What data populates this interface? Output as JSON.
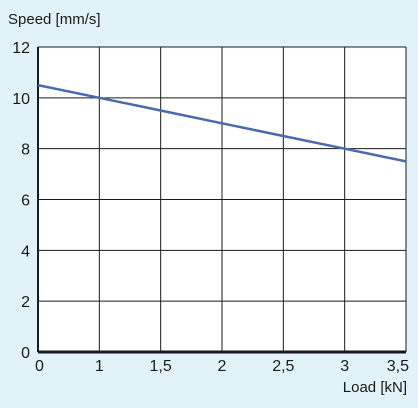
{
  "chart_data": {
    "type": "line",
    "title": "",
    "xlabel": "Load [kN]",
    "ylabel": "Speed [mm/s]",
    "x_ticks": [
      "0",
      "1",
      "1,5",
      "2",
      "2,5",
      "3",
      "3,5"
    ],
    "y_ticks": [
      "0",
      "2",
      "4",
      "6",
      "8",
      "10",
      "12"
    ],
    "xlim": [
      0,
      3.5
    ],
    "ylim": [
      0,
      12
    ],
    "grid": true,
    "legend": "none",
    "series": [
      {
        "x": [
          0,
          1,
          1.5,
          2,
          2.5,
          3,
          3.5
        ],
        "y": [
          10.5,
          10,
          9.5,
          9,
          8.5,
          8,
          7.5
        ],
        "color": "#4a6aae"
      }
    ],
    "colors": {
      "background": "#e1f3f8",
      "plot_area": "#ffffff",
      "grid": "#1a1a1a",
      "line": "#4a6aae"
    }
  }
}
